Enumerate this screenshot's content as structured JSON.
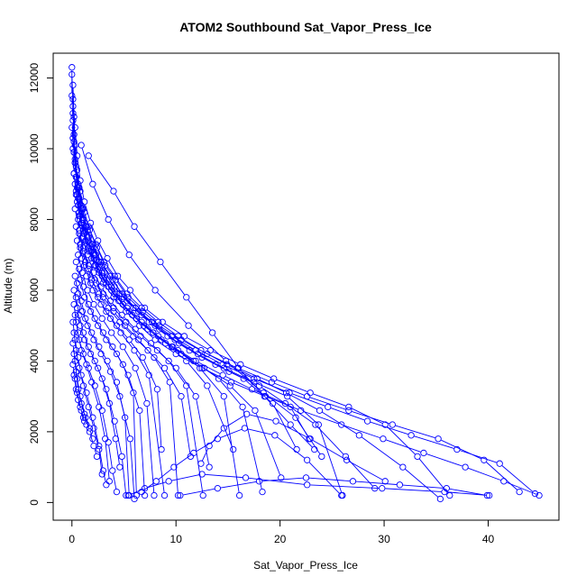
{
  "chart_data": {
    "type": "line",
    "title": "ATOM2 Southbound Sat_Vapor_Press_Ice",
    "xlabel": "Sat_Vapor_Press_Ice",
    "ylabel": "Altitude (m)",
    "xlim": [
      -1.8,
      46.8
    ],
    "ylim": [
      -500,
      12700
    ],
    "xticks": [
      0,
      10,
      20,
      30,
      40
    ],
    "yticks": [
      0,
      2000,
      4000,
      6000,
      8000,
      10000,
      12000
    ],
    "grid": false,
    "legend": "none",
    "marker": "open-circle",
    "color": "#0000ff",
    "series": [
      {
        "x": [
          0.0,
          0.0,
          0.1,
          0.1,
          0.2,
          0.4,
          0.7,
          1.1,
          1.6,
          2.2,
          3.0,
          4.0,
          5.2,
          6.5,
          8.0,
          10.0,
          12.5,
          15.3,
          18.6,
          22.0,
          25.9,
          29.9,
          33.8,
          37.8,
          41.5,
          44.9
        ],
        "y": [
          12300,
          11500,
          10800,
          10000,
          9300,
          8700,
          8100,
          7600,
          7100,
          6700,
          6200,
          5800,
          5400,
          5000,
          4600,
          4200,
          3800,
          3400,
          3000,
          2600,
          2200,
          1800,
          1400,
          1000,
          600,
          200
        ]
      },
      {
        "x": [
          0.0,
          0.1,
          0.2,
          0.3,
          0.6,
          0.9,
          1.4,
          2.0,
          2.8,
          3.7,
          4.8,
          6.1,
          7.7,
          9.6,
          11.9,
          14.5,
          17.5,
          20.9,
          24.6,
          28.4,
          32.6,
          37.0,
          41.1,
          44.5
        ],
        "y": [
          12100,
          11200,
          10400,
          9700,
          9000,
          8400,
          7800,
          7300,
          6800,
          6400,
          5900,
          5500,
          5100,
          4700,
          4300,
          3900,
          3500,
          3100,
          2700,
          2300,
          1900,
          1500,
          1100,
          250
        ]
      },
      {
        "x": [
          0.1,
          0.2,
          0.3,
          0.5,
          0.8,
          1.2,
          1.7,
          2.4,
          3.2,
          4.2,
          5.4,
          6.8,
          8.4,
          10.5,
          13.0,
          15.9,
          19.2,
          22.6,
          26.6,
          30.8,
          35.2,
          39.6,
          43.0
        ],
        "y": [
          11800,
          10900,
          10100,
          9400,
          8800,
          8200,
          7700,
          7200,
          6700,
          6300,
          5800,
          5400,
          5000,
          4600,
          4200,
          3800,
          3400,
          3000,
          2600,
          2200,
          1800,
          1200,
          300
        ]
      },
      {
        "x": [
          0.1,
          0.3,
          0.5,
          0.8,
          1.2,
          1.8,
          2.5,
          3.4,
          4.4,
          5.6,
          7.0,
          8.7,
          10.8,
          13.3,
          16.2,
          19.4,
          22.9,
          26.6,
          30.1,
          33.2,
          36.3
        ],
        "y": [
          11400,
          10600,
          9800,
          9100,
          8500,
          7900,
          7400,
          6900,
          6400,
          6000,
          5500,
          5100,
          4700,
          4300,
          3900,
          3500,
          3100,
          2700,
          2200,
          1300,
          200
        ]
      },
      {
        "x": [
          0.1,
          0.2,
          0.4,
          0.7,
          1.1,
          1.6,
          2.3,
          3.1,
          4.1,
          5.3,
          6.7,
          8.3,
          10.2,
          12.4,
          14.9,
          17.8,
          20.6,
          23.8,
          27.6,
          31.8,
          35.4
        ],
        "y": [
          11000,
          10200,
          9500,
          8900,
          8300,
          7800,
          7300,
          6800,
          6400,
          5900,
          5500,
          5100,
          4700,
          4300,
          3900,
          3500,
          3100,
          2600,
          1900,
          1000,
          100
        ]
      },
      {
        "x": [
          0.0,
          0.2,
          0.4,
          0.6,
          1.0,
          1.5,
          2.1,
          2.9,
          3.8,
          4.9,
          6.2,
          7.8,
          9.7,
          11.9,
          14.5,
          17.3,
          20.5,
          23.4,
          26.3,
          29.1
        ],
        "y": [
          10600,
          9900,
          9200,
          8600,
          8000,
          7500,
          7000,
          6500,
          6100,
          5600,
          5200,
          4800,
          4400,
          4000,
          3600,
          3200,
          2800,
          2200,
          1300,
          400
        ]
      },
      {
        "x": [
          0.1,
          0.3,
          0.6,
          1.0,
          1.5,
          2.1,
          2.9,
          3.9,
          5.0,
          6.4,
          8.0,
          9.9,
          12.1,
          14.6,
          17.5,
          20.7,
          23.7,
          26.0
        ],
        "y": [
          10300,
          9600,
          8900,
          8300,
          7700,
          7200,
          6700,
          6300,
          5800,
          5400,
          5000,
          4600,
          4200,
          3800,
          3400,
          3000,
          2200,
          200
        ]
      },
      {
        "x": [
          0.2,
          0.4,
          0.7,
          1.1,
          1.6,
          2.3,
          3.1,
          4.1,
          5.3,
          6.7,
          8.4,
          10.3,
          12.5,
          15.1,
          18.0,
          21.0,
          22.8
        ],
        "y": [
          9900,
          9200,
          8600,
          8000,
          7500,
          7000,
          6500,
          6100,
          5700,
          5300,
          4900,
          4500,
          4100,
          3700,
          3300,
          2700,
          1800
        ]
      },
      {
        "x": [
          0.3,
          0.5,
          0.9,
          1.3,
          1.9,
          2.6,
          3.5,
          4.6,
          5.9,
          7.4,
          9.2,
          11.3,
          13.8,
          16.5,
          19.3,
          21.6
        ],
        "y": [
          9600,
          8900,
          8300,
          7800,
          7300,
          6800,
          6300,
          5900,
          5500,
          5100,
          4700,
          4300,
          3900,
          3500,
          2800,
          1500
        ]
      },
      {
        "x": [
          0.2,
          0.5,
          0.8,
          1.2,
          1.8,
          2.5,
          3.3,
          4.3,
          5.5,
          6.9,
          8.6,
          10.5,
          12.7,
          15.2,
          17.6,
          20.1
        ],
        "y": [
          9300,
          8700,
          8100,
          7600,
          7100,
          6600,
          6200,
          5800,
          5400,
          5000,
          4600,
          4200,
          3800,
          3300,
          2600,
          700
        ]
      },
      {
        "x": [
          0.3,
          0.6,
          1.0,
          1.5,
          2.1,
          2.9,
          3.8,
          4.9,
          6.2,
          7.8,
          9.6,
          11.7,
          14.1,
          16.4,
          18.3
        ],
        "y": [
          9000,
          8400,
          7900,
          7400,
          6900,
          6400,
          6000,
          5600,
          5200,
          4800,
          4400,
          4000,
          3500,
          2700,
          300
        ]
      },
      {
        "x": [
          0.4,
          0.7,
          1.1,
          1.6,
          2.3,
          3.1,
          4.1,
          5.3,
          6.7,
          8.3,
          10.2,
          12.3,
          14.6,
          16.1
        ],
        "y": [
          8800,
          8200,
          7700,
          7200,
          6700,
          6300,
          5900,
          5500,
          5100,
          4700,
          4300,
          3800,
          3000,
          200
        ]
      },
      {
        "x": [
          0.5,
          0.9,
          1.3,
          1.9,
          2.6,
          3.5,
          4.5,
          5.8,
          7.3,
          9.0,
          11.0,
          13.0,
          15.5
        ],
        "y": [
          8500,
          7900,
          7400,
          6900,
          6500,
          6100,
          5700,
          5300,
          4900,
          4500,
          4000,
          3300,
          1500
        ]
      },
      {
        "x": [
          0.3,
          0.7,
          1.1,
          1.6,
          2.2,
          3.0,
          4.0,
          5.2,
          6.6,
          8.2,
          10.0,
          11.9,
          13.2
        ],
        "y": [
          8300,
          7700,
          7200,
          6700,
          6300,
          5900,
          5500,
          5100,
          4700,
          4300,
          3800,
          3000,
          1000
        ]
      },
      {
        "x": [
          0.6,
          1.0,
          1.5,
          2.1,
          2.8,
          3.7,
          4.8,
          6.1,
          7.6,
          9.3,
          11.0,
          12.6
        ],
        "y": [
          8000,
          7500,
          7000,
          6500,
          6100,
          5700,
          5300,
          4900,
          4500,
          4000,
          3300,
          200
        ]
      },
      {
        "x": [
          0.4,
          0.8,
          1.3,
          1.9,
          2.6,
          3.5,
          4.6,
          5.9,
          7.3,
          8.9,
          10.5,
          11.4
        ],
        "y": [
          7800,
          7300,
          6800,
          6300,
          5900,
          5500,
          5100,
          4700,
          4300,
          3800,
          3000,
          1300
        ]
      },
      {
        "x": [
          0.7,
          1.1,
          1.6,
          2.3,
          3.0,
          4.0,
          5.1,
          6.4,
          7.9,
          9.4,
          10.2
        ],
        "y": [
          7600,
          7100,
          6600,
          6200,
          5800,
          5400,
          5000,
          4600,
          4100,
          3400,
          200
        ]
      },
      {
        "x": [
          0.5,
          0.9,
          1.4,
          2.0,
          2.8,
          3.7,
          4.7,
          6.0,
          7.4,
          8.9
        ],
        "y": [
          7400,
          6900,
          6400,
          6000,
          5600,
          5200,
          4800,
          4300,
          3600,
          200
        ]
      },
      {
        "x": [
          0.8,
          1.2,
          1.8,
          2.5,
          3.3,
          4.3,
          5.5,
          6.8,
          8.2,
          8.6
        ],
        "y": [
          7200,
          6700,
          6200,
          5800,
          5400,
          5000,
          4600,
          4100,
          3200,
          1500
        ]
      },
      {
        "x": [
          0.6,
          1.0,
          1.5,
          2.1,
          2.9,
          3.8,
          4.9,
          6.1,
          7.2,
          7.9
        ],
        "y": [
          7000,
          6500,
          6000,
          5600,
          5200,
          4800,
          4400,
          3800,
          2800,
          200
        ]
      },
      {
        "x": [
          0.4,
          0.8,
          1.2,
          1.8,
          2.5,
          3.3,
          4.3,
          5.4,
          6.5,
          7.0
        ],
        "y": [
          6800,
          6300,
          5800,
          5400,
          5000,
          4600,
          4200,
          3600,
          2600,
          200
        ]
      },
      {
        "x": [
          0.7,
          1.1,
          1.6,
          2.2,
          3.0,
          3.9,
          4.9,
          5.9,
          6.2
        ],
        "y": [
          6600,
          6100,
          5600,
          5200,
          4800,
          4400,
          3900,
          3100,
          200
        ]
      },
      {
        "x": [
          0.3,
          0.6,
          1.0,
          1.5,
          2.1,
          2.8,
          3.7,
          4.6,
          5.6,
          6.0
        ],
        "y": [
          6400,
          5900,
          5400,
          5000,
          4600,
          4200,
          3700,
          3000,
          1800,
          100
        ]
      },
      {
        "x": [
          0.5,
          0.9,
          1.3,
          1.9,
          2.6,
          3.4,
          4.3,
          5.1,
          5.5
        ],
        "y": [
          6200,
          5700,
          5200,
          4800,
          4400,
          4000,
          3400,
          2400,
          200
        ]
      },
      {
        "x": [
          0.2,
          0.5,
          0.8,
          1.2,
          1.8,
          2.5,
          3.3,
          4.1,
          4.8,
          5.2
        ],
        "y": [
          6000,
          5500,
          5000,
          4600,
          4200,
          3800,
          3200,
          2300,
          1300,
          200
        ]
      },
      {
        "x": [
          0.4,
          0.7,
          1.1,
          1.6,
          2.2,
          2.9,
          3.6,
          4.2,
          4.6
        ],
        "y": [
          5800,
          5300,
          4800,
          4400,
          4000,
          3500,
          2800,
          1800,
          1000
        ]
      },
      {
        "x": [
          0.2,
          0.4,
          0.7,
          1.1,
          1.6,
          2.2,
          2.9,
          3.5,
          3.9,
          4.3
        ],
        "y": [
          5600,
          5100,
          4600,
          4200,
          3800,
          3300,
          2600,
          1700,
          900,
          300
        ]
      },
      {
        "x": [
          0.3,
          0.6,
          0.9,
          1.4,
          1.9,
          2.6,
          3.2,
          3.6
        ],
        "y": [
          5300,
          4800,
          4300,
          3900,
          3400,
          2700,
          1800,
          600
        ]
      },
      {
        "x": [
          0.1,
          0.3,
          0.6,
          0.9,
          1.4,
          2.0,
          2.6,
          3.0,
          3.3
        ],
        "y": [
          5100,
          4600,
          4100,
          3600,
          3100,
          2400,
          1600,
          900,
          500
        ]
      },
      {
        "x": [
          0.2,
          0.4,
          0.7,
          1.1,
          1.6,
          2.1,
          2.6,
          2.9
        ],
        "y": [
          4800,
          4300,
          3800,
          3300,
          2700,
          2100,
          1500,
          800
        ]
      },
      {
        "x": [
          0.1,
          0.3,
          0.5,
          0.8,
          1.2,
          1.7,
          2.1,
          2.4
        ],
        "y": [
          4500,
          4000,
          3500,
          3000,
          2500,
          2000,
          1600,
          1300
        ]
      },
      {
        "x": [
          0.2,
          0.4,
          0.6,
          0.9,
          1.3,
          1.7,
          2.0
        ],
        "y": [
          4200,
          3700,
          3200,
          2800,
          2400,
          2100,
          1800
        ]
      },
      {
        "x": [
          0.1,
          0.3,
          0.5,
          0.8,
          1.1,
          1.4
        ],
        "y": [
          3900,
          3500,
          3100,
          2700,
          2400,
          2200
        ]
      },
      {
        "x": [
          0.2,
          0.4,
          0.6,
          0.9,
          1.2
        ],
        "y": [
          3600,
          3200,
          2900,
          2600,
          2300
        ]
      },
      {
        "x": [
          1.6,
          4.0,
          6.0,
          8.5,
          11.0,
          13.5,
          16.0,
          18.5,
          21.0,
          23.3
        ],
        "y": [
          9800,
          8800,
          7800,
          6800,
          5800,
          4800,
          3800,
          3000,
          2200,
          1500
        ]
      },
      {
        "x": [
          0.9,
          2.0,
          3.5,
          5.5,
          8.0,
          11.2,
          14.8,
          18.4,
          21.5,
          24.0
        ],
        "y": [
          10100,
          9000,
          8000,
          7000,
          6000,
          5000,
          4000,
          3100,
          2400,
          1300
        ]
      },
      {
        "x": [
          5.4,
          7.0,
          9.3,
          12.5,
          16.7,
          22.6,
          29.8,
          35.8,
          40.1
        ],
        "y": [
          200,
          400,
          600,
          800,
          700,
          500,
          400,
          300,
          200
        ]
      },
      {
        "x": [
          10.4,
          14.0,
          18.0,
          22.5,
          27.0,
          31.5,
          36.0,
          39.9
        ],
        "y": [
          200,
          400,
          600,
          700,
          600,
          500,
          400,
          200
        ]
      },
      {
        "x": [
          12.4,
          13.2,
          14.6,
          16.8,
          19.6,
          22.9,
          26.4,
          30.1
        ],
        "y": [
          1100,
          1600,
          2100,
          2500,
          2300,
          1800,
          1200,
          600
        ]
      },
      {
        "x": [
          6.7,
          8.1,
          9.8,
          11.7,
          14.0,
          16.6,
          19.5,
          22.6,
          25.9
        ],
        "y": [
          300,
          600,
          1000,
          1400,
          1800,
          2100,
          1900,
          1200,
          200
        ]
      }
    ]
  }
}
